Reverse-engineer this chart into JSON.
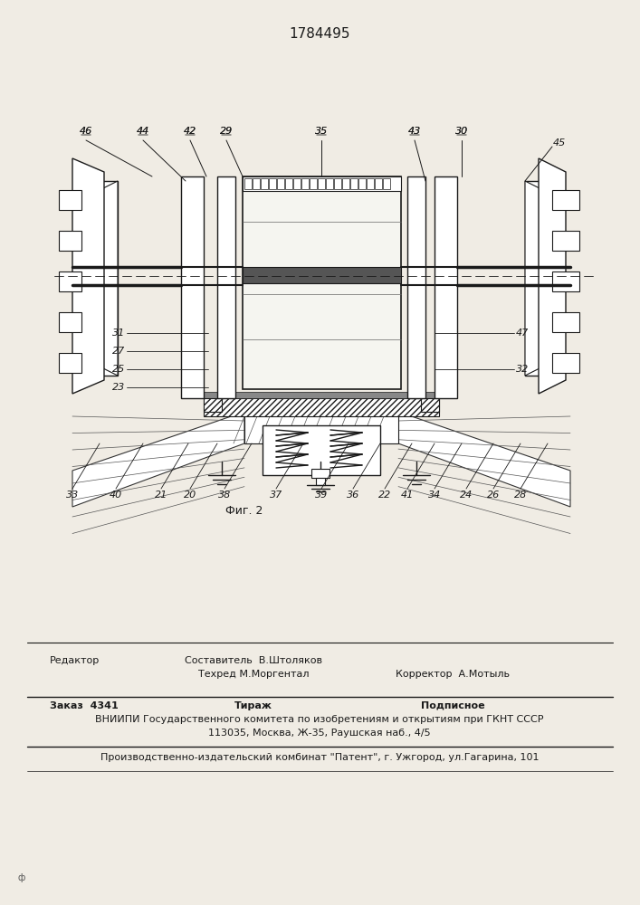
{
  "title": "1784495",
  "fig_label": "Фиг. 2",
  "background_color": "#e8e4dc",
  "title_fontsize": 11,
  "fig_label_fontsize": 9,
  "footer_lines": [
    {
      "Редактор": ""
    },
    {
      "Составитель  В.Штоляков": ""
    },
    {
      "Техред М.Моргентал": "Корректор  А.Мотыль"
    },
    {
      "Заказ 4341": "Тираж"
    },
    {
      "Подписное": ""
    }
  ],
  "vnipi_line": "ВНИИПИ Государственного комитета по изобретениям и открытиям при ГКНТ СССР",
  "addr_line": "113035, Москва, Ж-35, Раушская наб., 4/5",
  "plant_line": "Производственно-издательский комбинат \"Патент\", г. Ужгород, ул.Гагарина, 101"
}
